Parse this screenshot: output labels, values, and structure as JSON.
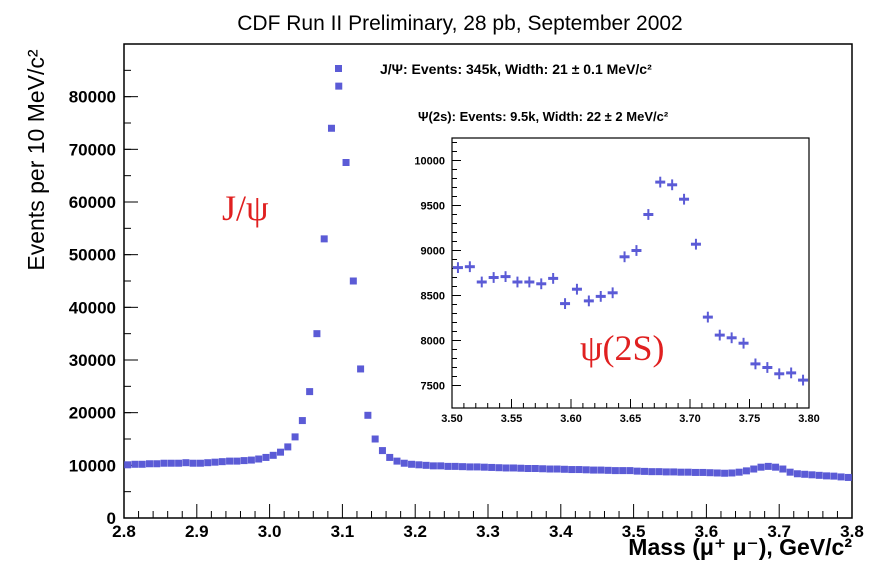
{
  "chart_data": [
    {
      "type": "scatter",
      "title": "CDF Run II Preliminary, 28 pb, September 2002",
      "xlabel": "Mass (μ⁺ μ⁻), GeV/c²",
      "ylabel": "Events per 10 MeV/c²",
      "xlim": [
        2.8,
        3.8
      ],
      "ylim": [
        0,
        90000
      ],
      "x_ticks": [
        "2.8",
        "2.9",
        "3.0",
        "3.1",
        "3.2",
        "3.3",
        "3.4",
        "3.5",
        "3.6",
        "3.7",
        "3.8"
      ],
      "y_ticks": [
        "0",
        "10000",
        "20000",
        "30000",
        "40000",
        "50000",
        "60000",
        "70000",
        "80000"
      ],
      "grid": false,
      "marker_color": "#5b5bd6",
      "stats_label": "J/Ψ: Events: 345k, Width: 21 ± 0.1 MeV/c²",
      "peak_annotation": "J/ψ",
      "annotation_color": "#e02020",
      "series": [
        {
          "x": [
            2.805,
            2.815,
            2.825,
            2.835,
            2.845,
            2.855,
            2.865,
            2.875,
            2.885,
            2.895,
            2.905,
            2.915,
            2.925,
            2.935,
            2.945,
            2.955,
            2.965,
            2.975,
            2.985,
            2.995,
            3.005,
            3.015,
            3.025,
            3.035,
            3.045,
            3.055,
            3.065,
            3.075,
            3.085,
            3.095,
            3.105,
            3.115,
            3.125,
            3.135,
            3.145,
            3.155,
            3.165,
            3.175,
            3.185,
            3.195,
            3.205,
            3.215,
            3.225,
            3.235,
            3.245,
            3.255,
            3.265,
            3.275,
            3.285,
            3.295,
            3.305,
            3.315,
            3.325,
            3.335,
            3.345,
            3.355,
            3.365,
            3.375,
            3.385,
            3.395,
            3.405,
            3.415,
            3.425,
            3.435,
            3.445,
            3.455,
            3.465,
            3.475,
            3.485,
            3.495,
            3.505,
            3.515,
            3.525,
            3.535,
            3.545,
            3.555,
            3.565,
            3.575,
            3.585,
            3.595,
            3.605,
            3.615,
            3.625,
            3.635,
            3.645,
            3.655,
            3.665,
            3.675,
            3.685,
            3.695,
            3.705,
            3.715,
            3.725,
            3.735,
            3.745,
            3.755,
            3.765,
            3.775,
            3.785,
            3.795
          ],
          "values": [
            10100,
            10200,
            10200,
            10300,
            10300,
            10400,
            10400,
            10400,
            10500,
            10400,
            10400,
            10500,
            10600,
            10700,
            10800,
            10800,
            10900,
            11000,
            11200,
            11500,
            11900,
            12500,
            13500,
            15400,
            18500,
            24000,
            35000,
            53000,
            74000,
            82000,
            67500,
            45000,
            28300,
            19500,
            15000,
            12800,
            11500,
            10800,
            10400,
            10200,
            10100,
            10000,
            9900,
            9900,
            9800,
            9800,
            9750,
            9700,
            9700,
            9650,
            9600,
            9550,
            9500,
            9500,
            9450,
            9400,
            9400,
            9350,
            9300,
            9300,
            9250,
            9200,
            9200,
            9150,
            9100,
            9100,
            9050,
            9000,
            9000,
            9000,
            8900,
            8850,
            8800,
            8800,
            8750,
            8750,
            8700,
            8700,
            8650,
            8650,
            8600,
            8550,
            8500,
            8550,
            8700,
            8950,
            9300,
            9650,
            9800,
            9650,
            9300,
            8700,
            8400,
            8300,
            8200,
            8100,
            8000,
            7950,
            7800,
            7700
          ]
        }
      ]
    },
    {
      "type": "scatter",
      "title": "Ψ(2s): Events: 9.5k, Width: 22 ± 2 MeV/c²",
      "xlim": [
        3.5,
        3.8
      ],
      "ylim": [
        7250,
        10250
      ],
      "x_ticks": [
        "3.50",
        "3.55",
        "3.60",
        "3.65",
        "3.70",
        "3.75",
        "3.80"
      ],
      "y_ticks": [
        "7500",
        "8000",
        "8500",
        "9000",
        "9500",
        "10000"
      ],
      "grid": false,
      "marker_color": "#5b5bd6",
      "peak_annotation": "ψ(2S)",
      "series": [
        {
          "x": [
            3.505,
            3.515,
            3.525,
            3.535,
            3.545,
            3.555,
            3.565,
            3.575,
            3.585,
            3.595,
            3.605,
            3.615,
            3.625,
            3.635,
            3.645,
            3.655,
            3.665,
            3.675,
            3.685,
            3.695,
            3.705,
            3.715,
            3.725,
            3.735,
            3.745,
            3.755,
            3.765,
            3.775,
            3.785,
            3.795
          ],
          "values": [
            8810,
            8820,
            8650,
            8700,
            8710,
            8650,
            8650,
            8630,
            8690,
            8410,
            8570,
            8440,
            8490,
            8530,
            8930,
            9000,
            9400,
            9760,
            9730,
            9570,
            9070,
            8260,
            8060,
            8030,
            7970,
            7740,
            7700,
            7630,
            7640,
            7560
          ],
          "errors": [
            60,
            60,
            60,
            60,
            60,
            60,
            60,
            60,
            60,
            60,
            60,
            60,
            60,
            60,
            60,
            60,
            60,
            60,
            60,
            60,
            60,
            60,
            60,
            60,
            60,
            60,
            60,
            60,
            60,
            60
          ]
        }
      ]
    }
  ]
}
